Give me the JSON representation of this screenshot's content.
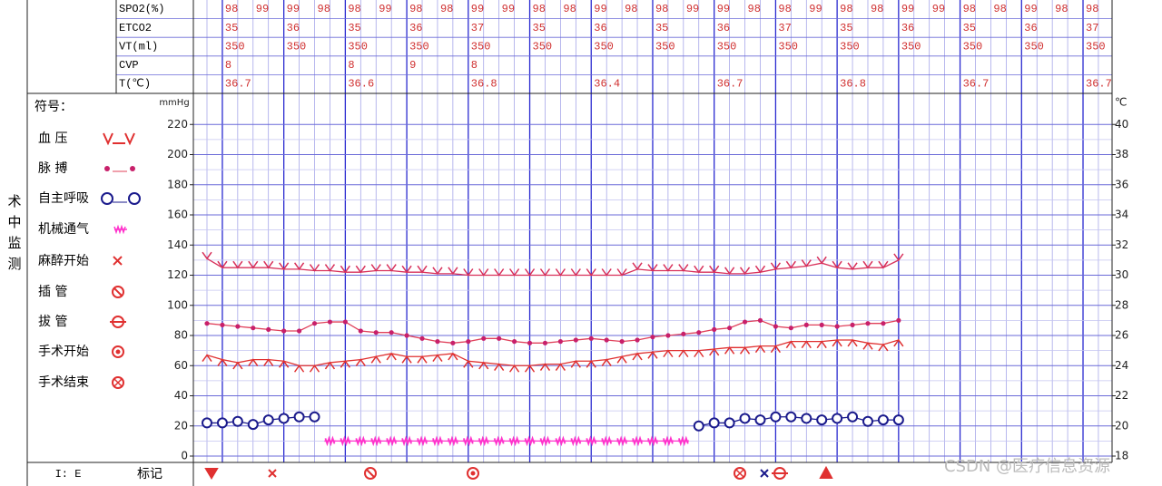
{
  "side_label": "术中监测",
  "monitor_table": {
    "rows": [
      {
        "label": "SPO2(%)",
        "values": [
          98,
          99,
          99,
          98,
          98,
          99,
          98,
          98,
          99,
          99,
          98,
          98,
          99,
          98,
          98,
          99,
          99,
          98,
          98,
          99,
          98,
          98,
          99,
          99,
          98,
          98,
          99,
          98,
          98
        ]
      },
      {
        "label": "ETCO2",
        "values": [
          35,
          null,
          36,
          null,
          35,
          null,
          36,
          null,
          37,
          null,
          35,
          null,
          36,
          null,
          35,
          null,
          36,
          null,
          37,
          null,
          35,
          null,
          36,
          null,
          35,
          null,
          36,
          null,
          37
        ]
      },
      {
        "label": "VT(ml)",
        "values": [
          350,
          null,
          350,
          null,
          350,
          null,
          350,
          null,
          350,
          null,
          350,
          null,
          350,
          null,
          350,
          null,
          350,
          null,
          350,
          null,
          350,
          null,
          350,
          null,
          350,
          null,
          350,
          null,
          350
        ]
      },
      {
        "label": "CVP",
        "values": [
          8,
          null,
          null,
          null,
          8,
          null,
          9,
          null,
          8,
          null,
          null,
          null,
          null,
          null,
          null,
          null,
          null,
          null,
          null,
          null,
          null,
          null,
          null,
          null,
          null,
          null,
          null,
          null,
          null
        ]
      },
      {
        "label": "T(℃)",
        "values": [
          36.7,
          null,
          null,
          null,
          36.6,
          null,
          null,
          null,
          36.8,
          null,
          null,
          null,
          36.4,
          null,
          null,
          null,
          36.7,
          null,
          null,
          null,
          36.8,
          null,
          null,
          null,
          36.7,
          null,
          null,
          null,
          36.7
        ]
      }
    ]
  },
  "legend_title": "符号：",
  "chart_data": {
    "type": "line",
    "y_label": "mmHg",
    "y2_label": "℃",
    "ylim": [
      0,
      240
    ],
    "yticks": [
      0,
      20,
      40,
      60,
      80,
      100,
      120,
      140,
      160,
      180,
      200,
      220
    ],
    "y2lim": [
      18,
      42
    ],
    "y2ticks": [
      18,
      20,
      22,
      24,
      26,
      28,
      30,
      32,
      34,
      36,
      38,
      40
    ],
    "grid": true,
    "categories": [
      null,
      null,
      null,
      null,
      null,
      null,
      null,
      null,
      null,
      null,
      null,
      null,
      null,
      null,
      null,
      null,
      null,
      null,
      null,
      null,
      null,
      null,
      null,
      null,
      null,
      null,
      null,
      null,
      null,
      null,
      null,
      null,
      null,
      null,
      null,
      null,
      null,
      null,
      null,
      null,
      null,
      null,
      null,
      null,
      null,
      null
    ],
    "series": [
      {
        "name": "血 压",
        "color": "#d8305a",
        "values": [
          131,
          125,
          125,
          125,
          125,
          124,
          124,
          123,
          123,
          122,
          122,
          123,
          123,
          122,
          122,
          121,
          121,
          120,
          120,
          120,
          120,
          120,
          120,
          120,
          120,
          120,
          120,
          120,
          124,
          123,
          123,
          123,
          122,
          122,
          121,
          121,
          122,
          124,
          125,
          126,
          128,
          125,
          124,
          125,
          125,
          130
        ],
        "lows": [
          67,
          64,
          62,
          64,
          64,
          63,
          60,
          60,
          62,
          63,
          64,
          66,
          68,
          66,
          66,
          67,
          68,
          63,
          62,
          61,
          60,
          60,
          61,
          61,
          63,
          63,
          64,
          66,
          68,
          69,
          70,
          70,
          70,
          71,
          72,
          72,
          73,
          73,
          76,
          76,
          76,
          77,
          77,
          75,
          74,
          77
        ],
        "low_color": "#e03030"
      },
      {
        "name": "脉 搏",
        "color": "#e0405a",
        "values": [
          88,
          87,
          86,
          85,
          84,
          83,
          83,
          88,
          89,
          89,
          83,
          82,
          82,
          80,
          78,
          76,
          75,
          76,
          78,
          78,
          76,
          75,
          75,
          76,
          77,
          78,
          77,
          76,
          77,
          79,
          80,
          81,
          82,
          84,
          85,
          89,
          90,
          86,
          85,
          87,
          87,
          86,
          87,
          88,
          88,
          90
        ]
      },
      {
        "name": "自主呼吸",
        "color": "#1a1a8c",
        "values": [
          22,
          22,
          23,
          21,
          24,
          25,
          26,
          26,
          null,
          null,
          null,
          null,
          null,
          null,
          null,
          null,
          null,
          null,
          null,
          null,
          null,
          null,
          null,
          null,
          null,
          null,
          null,
          null,
          null,
          null,
          null,
          null,
          20,
          22,
          22,
          25,
          24,
          26,
          26,
          25,
          24,
          25,
          26,
          23,
          24,
          24
        ]
      },
      {
        "name": "机械通气",
        "color": "#ff33cc",
        "values": [
          null,
          null,
          null,
          null,
          null,
          null,
          null,
          null,
          10,
          10,
          10,
          10,
          10,
          10,
          10,
          10,
          10,
          10,
          10,
          10,
          10,
          10,
          10,
          10,
          10,
          10,
          10,
          10,
          10,
          10,
          10,
          10,
          null,
          null,
          null,
          null,
          null,
          null,
          null,
          null,
          null,
          null,
          null,
          null,
          null,
          null
        ]
      }
    ],
    "events": [
      "麻醉开始",
      "插 管",
      "拔 管",
      "手术开始",
      "手术结束"
    ]
  },
  "footer": {
    "ie": "I: E",
    "mark": "标记"
  },
  "watermark": "CSDN @医疗信息资源"
}
